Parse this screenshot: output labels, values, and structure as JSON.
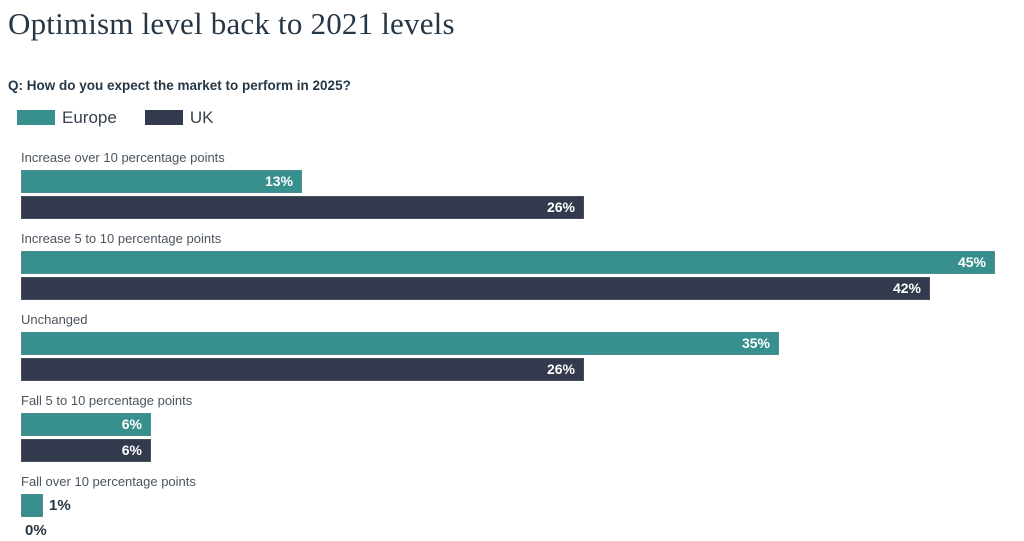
{
  "title": "Optimism level back to 2021 levels",
  "question": "Q: How do you expect the market to perform in 2025?",
  "colors": {
    "europe": "#38908e",
    "uk": "#333a4d",
    "title_text": "#253746",
    "category_label": "#4a545e",
    "value_inside": "#ffffff",
    "value_outside": "#273542",
    "background": "#ffffff"
  },
  "chart_data": {
    "type": "bar",
    "orientation": "horizontal",
    "title": "Optimism level back to 2021 levels",
    "subtitle": "Q: How do you expect the market to perform in 2025?",
    "categories": [
      "Increase over 10 percentage points",
      "Increase 5 to 10 percentage points",
      "Unchanged",
      "Fall 5 to 10 percentage points",
      "Fall over 10 percentage points"
    ],
    "series": [
      {
        "name": "Europe",
        "color": "#38908e",
        "values": [
          13,
          45,
          35,
          6,
          1
        ]
      },
      {
        "name": "UK",
        "color": "#333a4d",
        "values": [
          26,
          42,
          26,
          6,
          0
        ]
      }
    ],
    "value_suffix": "%",
    "xlim": [
      0,
      45
    ],
    "grid": false,
    "legend_position": "top-left",
    "value_labels": "inside-end"
  }
}
